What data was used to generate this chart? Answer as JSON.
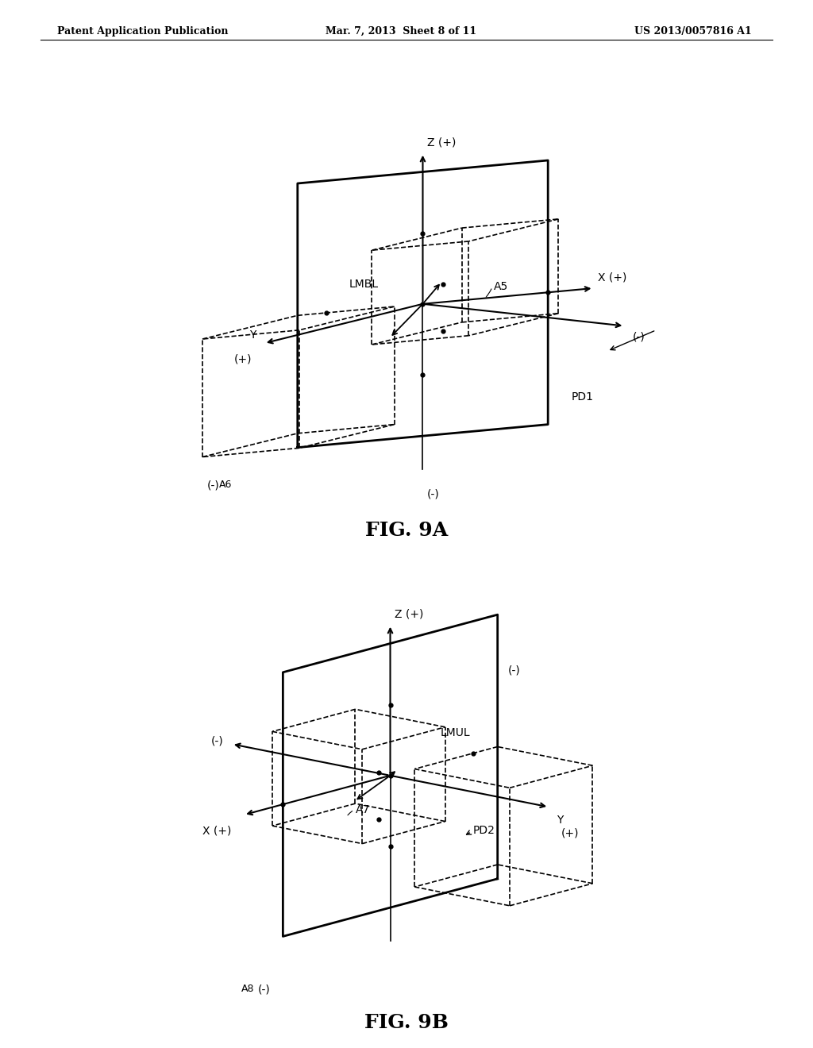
{
  "header_left": "Patent Application Publication",
  "header_mid": "Mar. 7, 2013  Sheet 8 of 11",
  "header_right": "US 2013/0057816 A1",
  "fig9a_label": "FIG. 9A",
  "fig9b_label": "FIG. 9B",
  "bg_color": "#ffffff",
  "line_color": "#000000",
  "font_size_header": 9,
  "font_size_axis": 10,
  "font_size_fig": 18
}
